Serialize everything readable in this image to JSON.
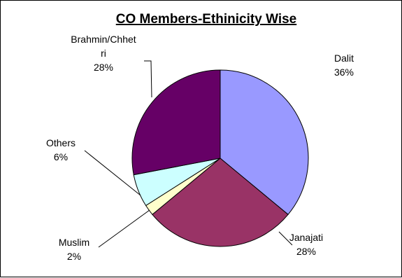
{
  "chart_data": {
    "type": "pie",
    "title": "CO Members-Ethinicity Wise",
    "categories": [
      "Dalit",
      "Janajati",
      "Muslim",
      "Others",
      "Brahmin/Chhetri"
    ],
    "values": [
      36,
      28,
      2,
      6,
      28
    ],
    "value_labels": [
      "36%",
      "28%",
      "2%",
      "6%",
      "28%"
    ],
    "label_lines": [
      [
        "Dalit",
        "36%"
      ],
      [
        "Janajati",
        "28%"
      ],
      [
        "Muslim",
        "2%"
      ],
      [
        "Others",
        "6%"
      ],
      [
        "Brahmin/Chhet",
        "ri",
        "28%"
      ]
    ],
    "colors": [
      "#9999FF",
      "#993366",
      "#FFFFCC",
      "#CCFFFF",
      "#660066"
    ],
    "start_angle_deg": 0,
    "direction": "clockwise",
    "legend": "none"
  }
}
